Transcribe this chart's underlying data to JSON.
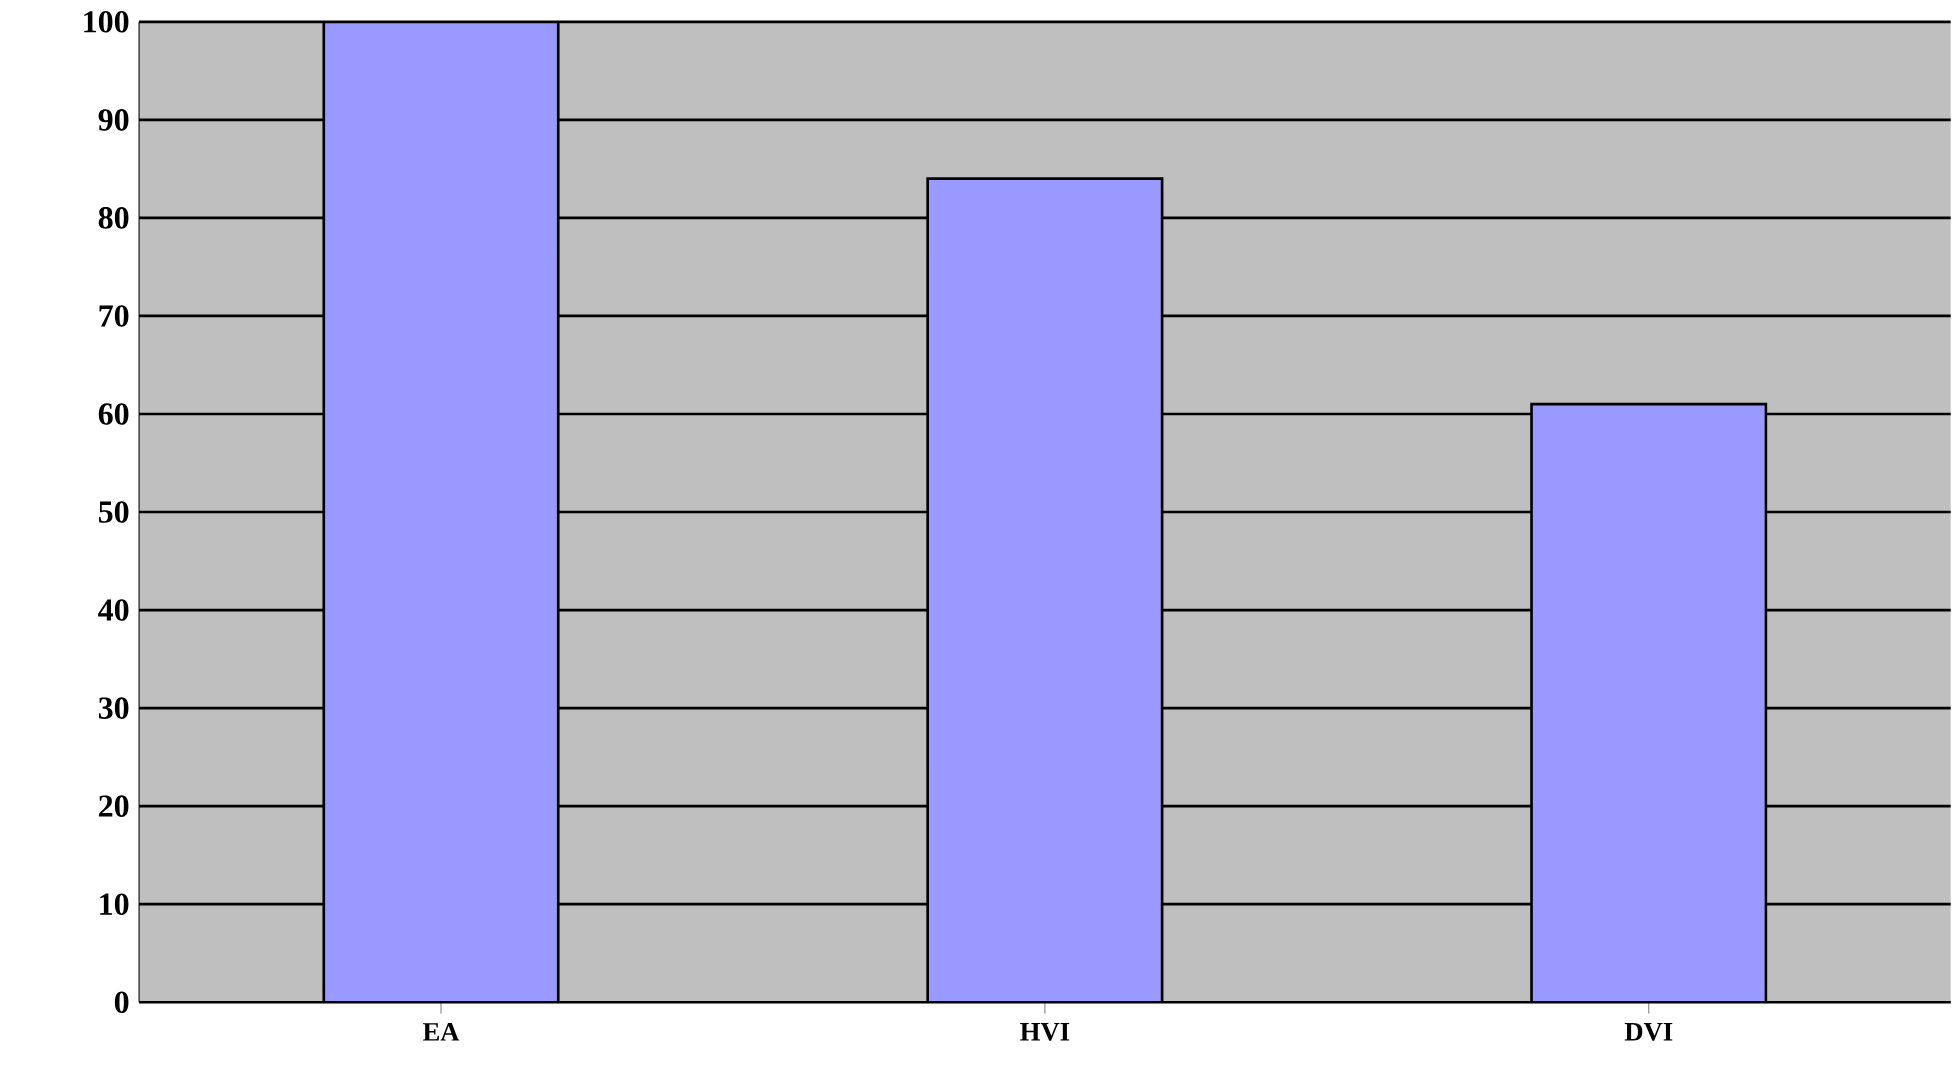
{
  "chart_data": {
    "type": "bar",
    "categories": [
      "EA",
      "HVI",
      "DVI"
    ],
    "values": [
      100,
      84,
      61
    ],
    "color": "#9999ff",
    "ylim": [
      0,
      100
    ],
    "yticks": [
      0,
      10,
      20,
      30,
      40,
      50,
      60,
      70,
      80,
      90,
      100
    ],
    "grid": "y"
  }
}
